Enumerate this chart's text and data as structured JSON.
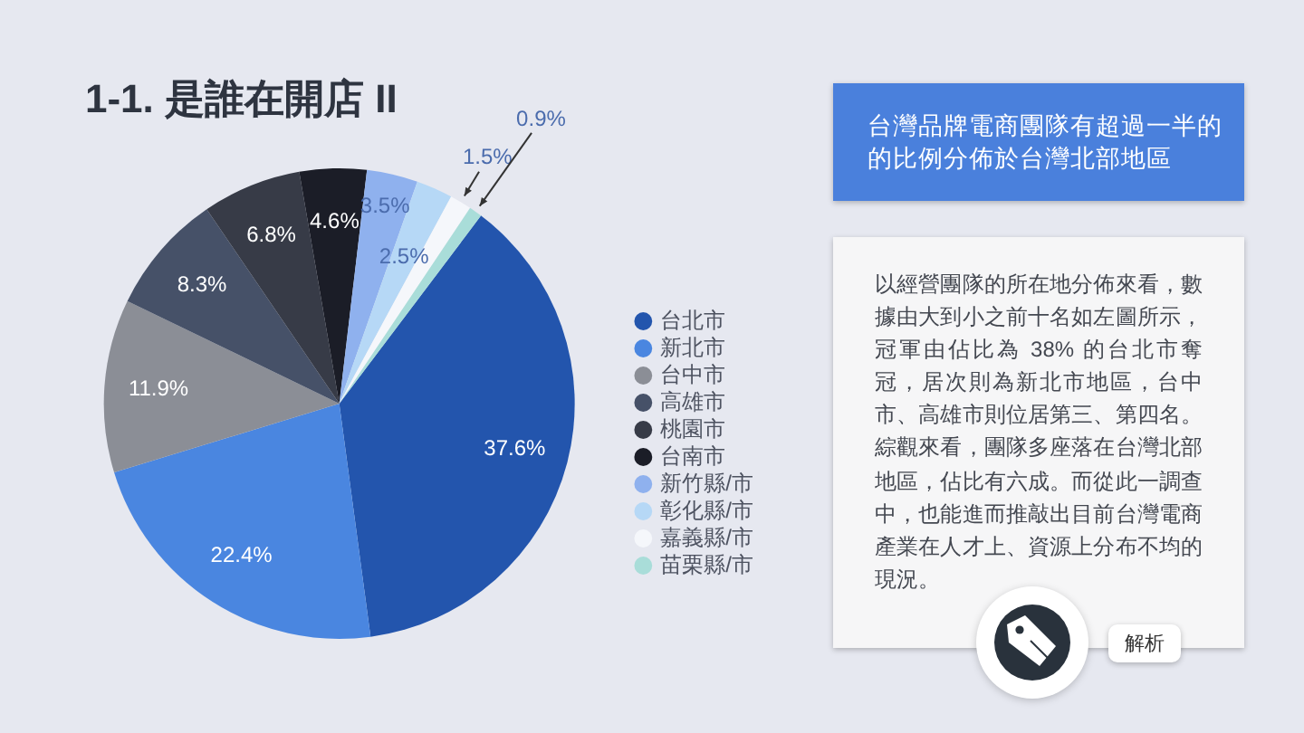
{
  "chart_data": {
    "type": "pie",
    "title": "1-1. 是誰在開店 II",
    "categories": [
      "台北市",
      "新北市",
      "台中市",
      "高雄市",
      "桃園市",
      "台南市",
      "新竹縣/市",
      "彰化縣/市",
      "嘉義縣/市",
      "苗栗縣/市"
    ],
    "values": [
      37.6,
      22.4,
      11.9,
      8.3,
      6.8,
      4.6,
      3.5,
      2.5,
      1.5,
      0.9
    ],
    "colors": [
      "#2355ad",
      "#4a86e0",
      "#8b8e96",
      "#465168",
      "#373b47",
      "#1b1d27",
      "#8fb1ee",
      "#b6d8f6",
      "#f5f7fb",
      "#a9ddd9"
    ],
    "value_labels": [
      "37.6%",
      "22.4%",
      "11.9%",
      "8.3%",
      "6.8%",
      "4.6%",
      "3.5%",
      "2.5%",
      "1.5%",
      "0.9%"
    ],
    "legend": "right",
    "annotations": [
      "台灣品牌電商團隊有超過一半的的比例分佈於台灣北部地區",
      "以經營團隊的所在地分佈來看，數據由大到小之前十名如左圖所示，冠軍由佔比為 38% 的台北市奪冠，居次則為新北市地區，台中市、高雄市則位居第三、第四名。綜觀來看，團隊多座落在台灣北部地區，佔比有六成。而從此一調查中，也能進而推敲出目前台灣電商產業在人才上、資源上分布不均的現況。",
      "解析"
    ]
  }
}
